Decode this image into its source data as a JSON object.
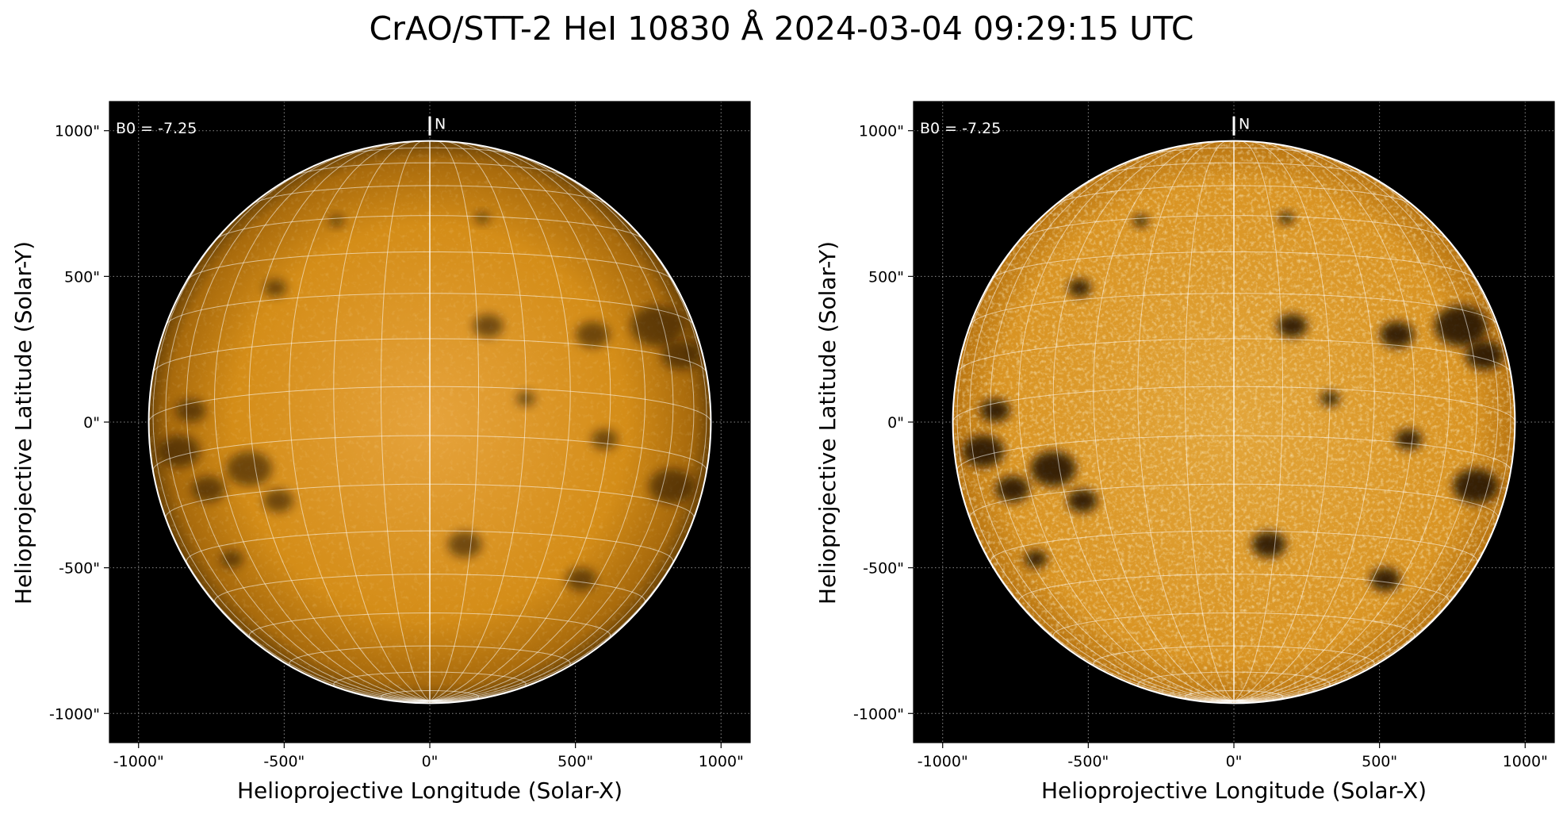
{
  "title": "CrAO/STT-2 HeI 10830 Å 2024-03-04 09:29:15 UTC",
  "colors": {
    "background": "#000000",
    "disk_base": "#d9900f",
    "limb": "#ffffff",
    "grid": "#ffffff"
  },
  "panels": [
    {
      "id": "left",
      "variant": "raw-intensity",
      "xlabel": "Helioprojective Longitude (Solar-X)",
      "ylabel": "Helioprojective Latitude (Solar-Y)",
      "b0_label": "B0 = -7.25",
      "north_label": "N",
      "xticks": [
        "-1000\"",
        "-500\"",
        "0\"",
        "500\"",
        "1000\""
      ],
      "yticks": [
        "1000\"",
        "500\"",
        "0\"",
        "-500\"",
        "-1000\""
      ]
    },
    {
      "id": "right",
      "variant": "contrast-enhanced",
      "xlabel": "Helioprojective Longitude (Solar-X)",
      "ylabel": "Helioprojective Latitude (Solar-Y)",
      "b0_label": "B0 = -7.25",
      "north_label": "N",
      "xticks": [
        "-1000\"",
        "-500\"",
        "0\"",
        "500\"",
        "1000\""
      ],
      "yticks": [
        "1000\"",
        "500\"",
        "0\"",
        "-500\"",
        "-1000\""
      ]
    }
  ],
  "chart_data": {
    "type": "image",
    "xlim": [
      -1100,
      1100
    ],
    "ylim": [
      -1100,
      1100
    ],
    "tick_values": [
      -1000,
      -500,
      0,
      500,
      1000
    ],
    "solar_radius_arcsec": 965,
    "b0_deg": -7.25,
    "grid_spacing_deg": 10,
    "dark_features": [
      {
        "x": -530,
        "y": 460,
        "r": 30
      },
      {
        "x": 200,
        "y": 330,
        "r": 40
      },
      {
        "x": 560,
        "y": 300,
        "r": 45
      },
      {
        "x": 780,
        "y": 330,
        "r": 70
      },
      {
        "x": 860,
        "y": 230,
        "r": 50
      },
      {
        "x": -820,
        "y": 40,
        "r": 40
      },
      {
        "x": -860,
        "y": -100,
        "r": 55
      },
      {
        "x": -620,
        "y": -160,
        "r": 60
      },
      {
        "x": -760,
        "y": -230,
        "r": 45
      },
      {
        "x": -520,
        "y": -270,
        "r": 40
      },
      {
        "x": 830,
        "y": -220,
        "r": 60
      },
      {
        "x": 600,
        "y": -60,
        "r": 35
      },
      {
        "x": 120,
        "y": -420,
        "r": 45
      },
      {
        "x": 520,
        "y": -540,
        "r": 40
      },
      {
        "x": -680,
        "y": -470,
        "r": 30
      },
      {
        "x": 330,
        "y": 80,
        "r": 25
      },
      {
        "x": -320,
        "y": 690,
        "r": 20
      },
      {
        "x": 180,
        "y": 700,
        "r": 20
      }
    ]
  }
}
